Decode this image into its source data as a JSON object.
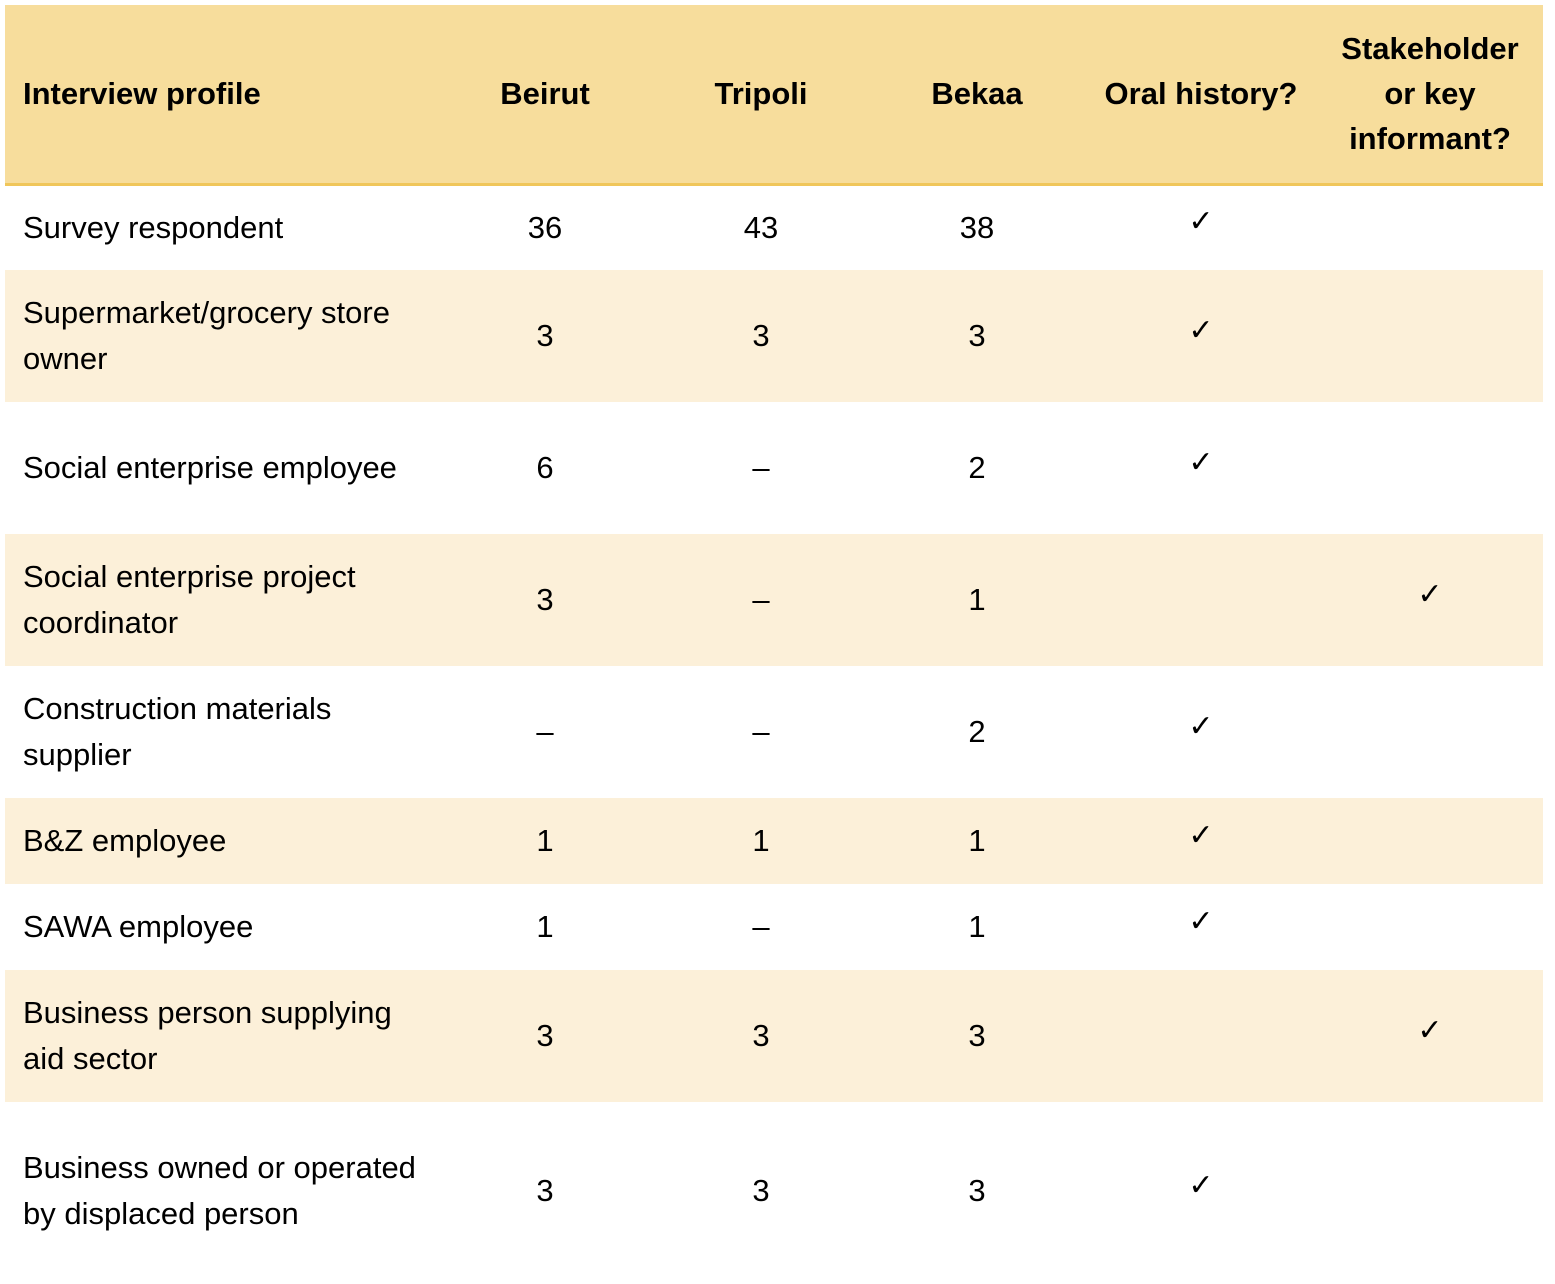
{
  "table": {
    "headers": {
      "profile": "Interview profile",
      "beirut": "Beirut",
      "tripoli": "Tripoli",
      "bekaa": "Bekaa",
      "oral": "Oral history?",
      "stakeholder": "Stakeholder or key informant?"
    },
    "check_mark": "✓",
    "rows": [
      {
        "profile": "Survey respondent",
        "beirut": "36",
        "tripoli": "43",
        "bekaa": "38",
        "oral": "✓",
        "stakeholder": ""
      },
      {
        "profile": "Supermarket/grocery store owner",
        "beirut": "3",
        "tripoli": "3",
        "bekaa": "3",
        "oral": "✓",
        "stakeholder": ""
      },
      {
        "profile": "Social enterprise employee",
        "beirut": "6",
        "tripoli": "–",
        "bekaa": "2",
        "oral": "✓",
        "stakeholder": ""
      },
      {
        "profile": "Social enterprise project coordinator",
        "beirut": "3",
        "tripoli": "–",
        "bekaa": "1",
        "oral": "",
        "stakeholder": "✓"
      },
      {
        "profile": "Construction materials supplier",
        "beirut": "–",
        "tripoli": "–",
        "bekaa": "2",
        "oral": "✓",
        "stakeholder": ""
      },
      {
        "profile": "B&Z employee",
        "beirut": "1",
        "tripoli": "1",
        "bekaa": "1",
        "oral": "✓",
        "stakeholder": ""
      },
      {
        "profile": "SAWA employee",
        "beirut": "1",
        "tripoli": "–",
        "bekaa": "1",
        "oral": "✓",
        "stakeholder": ""
      },
      {
        "profile": "Business person supplying aid sector",
        "beirut": "3",
        "tripoli": "3",
        "bekaa": "3",
        "oral": "",
        "stakeholder": "✓"
      },
      {
        "profile": "Business owned or operated by displaced person",
        "beirut": "3",
        "tripoli": "3",
        "bekaa": "3",
        "oral": "✓",
        "stakeholder": ""
      }
    ]
  },
  "colors": {
    "header_bg": "#f7dd9c",
    "header_border": "#f0c65a",
    "stripe_bg": "#fcf0d9",
    "row_bg": "#ffffff"
  }
}
